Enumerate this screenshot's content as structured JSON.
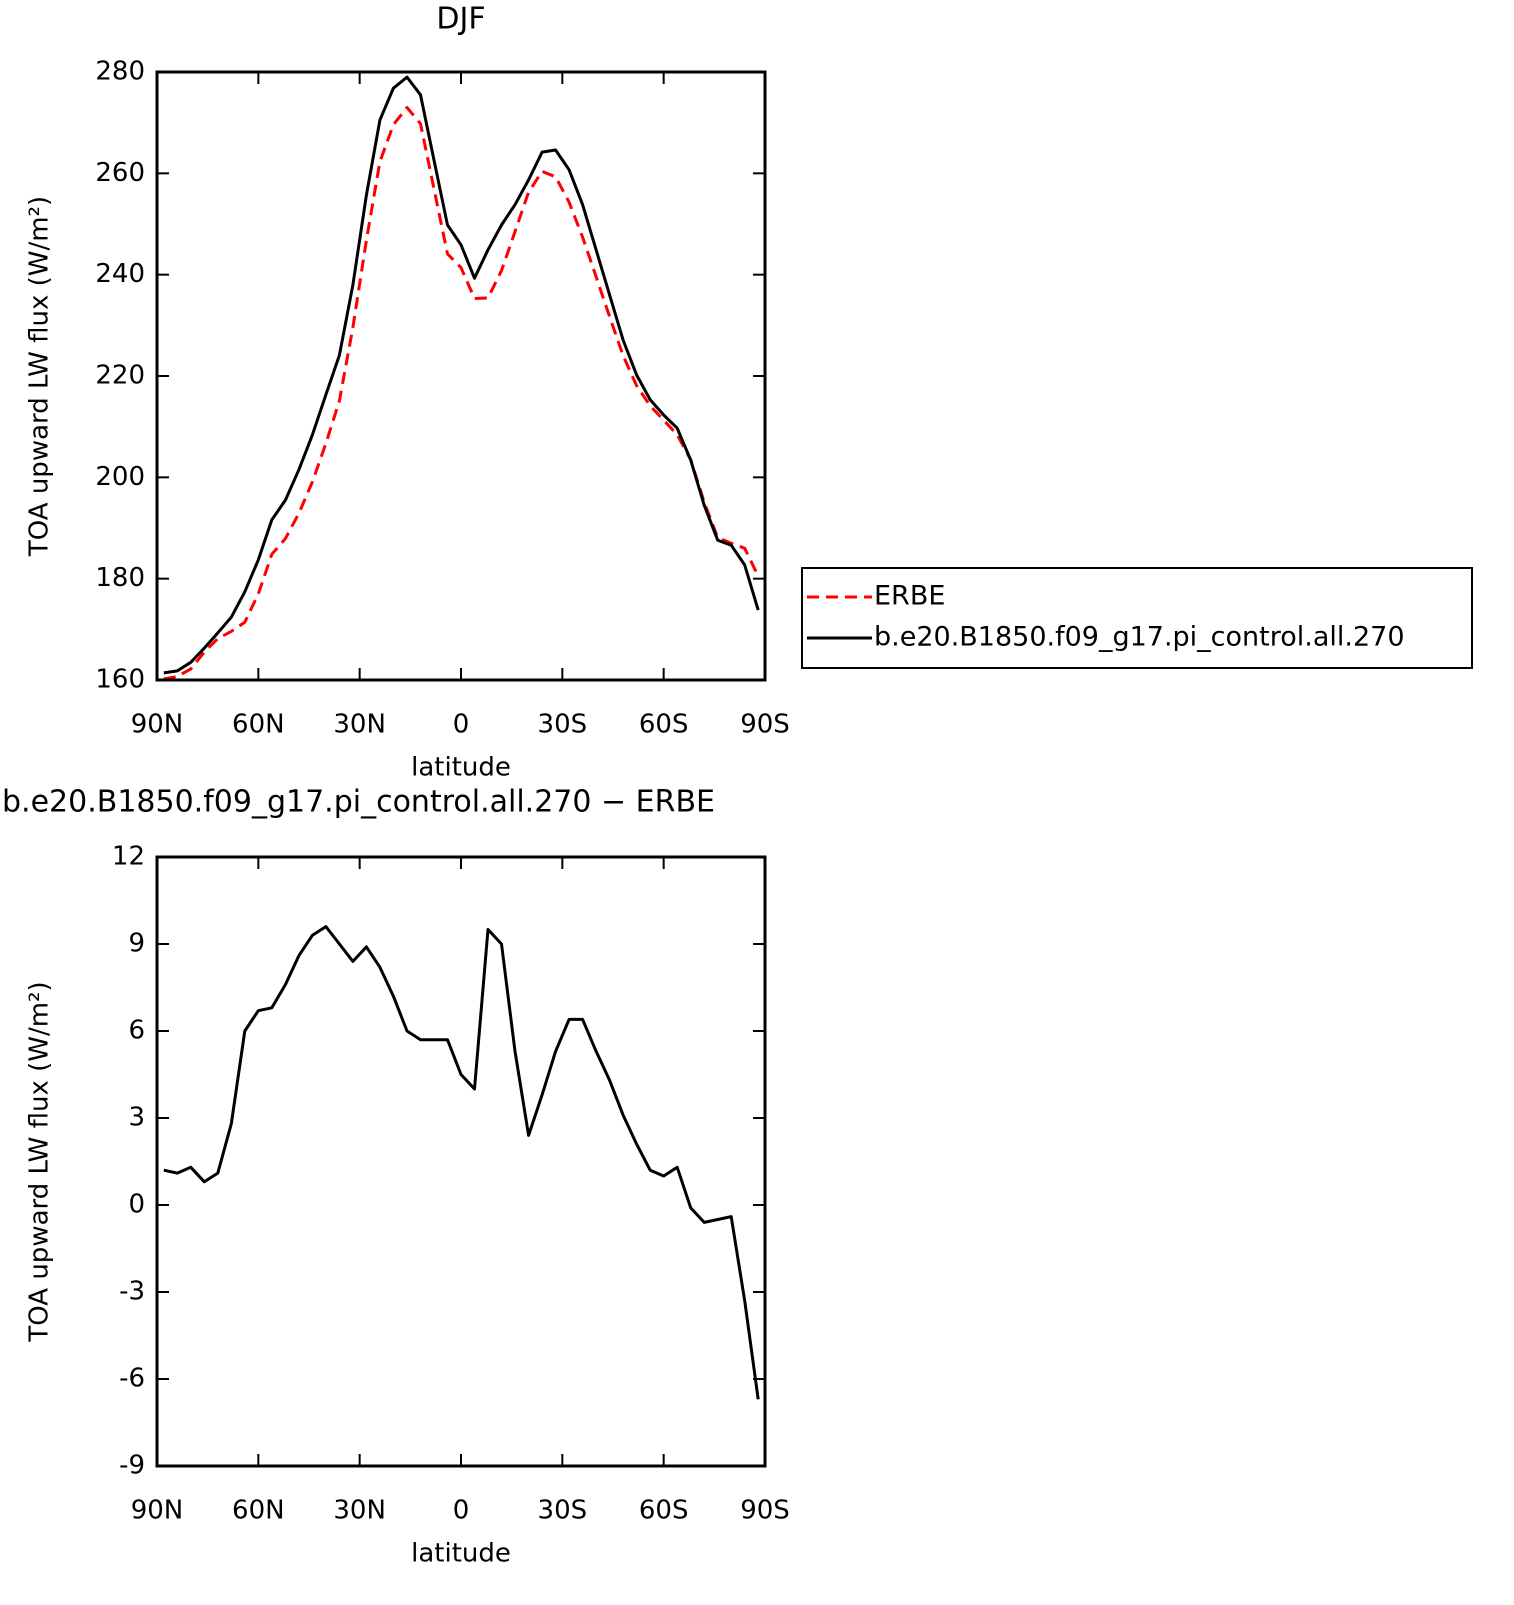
{
  "chart_data": [
    {
      "type": "line",
      "title": "DJF",
      "xlabel": "latitude",
      "ylabel": "TOA upward LW flux (W/m²)",
      "x": [
        88,
        84,
        80,
        76,
        72,
        68,
        64,
        60,
        56,
        52,
        48,
        44,
        40,
        36,
        32,
        28,
        24,
        20,
        16,
        12,
        8,
        4,
        0,
        -4,
        -8,
        -12,
        -16,
        -20,
        -24,
        -28,
        -32,
        -36,
        -40,
        -44,
        -48,
        -52,
        -56,
        -60,
        -64,
        -68,
        -72,
        -76,
        -80,
        -84,
        -88
      ],
      "xlim": [
        90,
        -90
      ],
      "xticks": [
        {
          "value": 90,
          "label": "90N"
        },
        {
          "value": 60,
          "label": "60N"
        },
        {
          "value": 30,
          "label": "30N"
        },
        0,
        {
          "value": -30,
          "label": "30S"
        },
        {
          "value": -60,
          "label": "60S"
        },
        {
          "value": -90,
          "label": "90S"
        }
      ],
      "ylim": [
        160,
        280
      ],
      "yticks": [
        160,
        180,
        200,
        220,
        240,
        260,
        280
      ],
      "legend": "right",
      "series": [
        {
          "name": "ERBE",
          "color": "#ff0000",
          "dashed": true,
          "values": [
            160.2,
            160.7,
            162.2,
            165.5,
            168.2,
            169.6,
            171.4,
            177.0,
            184.8,
            187.9,
            192.9,
            199.1,
            206.7,
            215.1,
            229.6,
            246.8,
            262.3,
            269.6,
            273.0,
            269.8,
            256.9,
            244.1,
            241.4,
            235.3,
            235.4,
            240.8,
            248.5,
            256.3,
            260.4,
            259.3,
            254.3,
            247.4,
            239.6,
            231.7,
            224.0,
            218.1,
            214.1,
            211.3,
            208.4,
            203.5,
            195.1,
            188.1,
            187.0,
            186.0,
            180.5
          ]
        },
        {
          "name": "b.e20.B1850.f09_g17.pi_control.all.270",
          "color": "#000000",
          "dashed": false,
          "values": [
            161.4,
            161.8,
            163.5,
            166.3,
            169.3,
            172.4,
            177.4,
            183.7,
            191.6,
            195.5,
            201.5,
            208.4,
            216.3,
            224.1,
            238.0,
            255.7,
            270.5,
            276.8,
            279.0,
            275.5,
            262.6,
            249.8,
            245.9,
            239.3,
            244.9,
            249.8,
            253.8,
            258.7,
            264.2,
            264.6,
            260.7,
            253.8,
            244.9,
            236.0,
            227.1,
            220.2,
            215.3,
            212.3,
            209.7,
            203.4,
            194.5,
            187.6,
            186.6,
            182.7,
            173.8
          ]
        }
      ]
    },
    {
      "type": "line",
      "title": "b.e20.B1850.f09_g17.pi_control.all.270 − ERBE",
      "xlabel": "latitude",
      "ylabel": "TOA upward LW flux (W/m²)",
      "x": [
        88,
        84,
        80,
        76,
        72,
        68,
        64,
        60,
        56,
        52,
        48,
        44,
        40,
        36,
        32,
        28,
        24,
        20,
        16,
        12,
        8,
        4,
        0,
        -4,
        -8,
        -12,
        -16,
        -20,
        -24,
        -28,
        -32,
        -36,
        -40,
        -44,
        -48,
        -52,
        -56,
        -60,
        -64,
        -68,
        -72,
        -76,
        -80,
        -84,
        -88
      ],
      "xlim": [
        90,
        -90
      ],
      "xticks": [
        {
          "value": 90,
          "label": "90N"
        },
        {
          "value": 60,
          "label": "60N"
        },
        {
          "value": 30,
          "label": "30N"
        },
        0,
        {
          "value": -30,
          "label": "30S"
        },
        {
          "value": -60,
          "label": "60S"
        },
        {
          "value": -90,
          "label": "90S"
        }
      ],
      "ylim": [
        -9,
        12
      ],
      "yticks": [
        -9,
        -6,
        -3,
        0,
        3,
        6,
        9,
        12
      ],
      "series": [
        {
          "color": "#000000",
          "dashed": false,
          "values": [
            1.2,
            1.1,
            1.3,
            0.8,
            1.1,
            2.8,
            6.0,
            6.7,
            6.8,
            7.6,
            8.6,
            9.3,
            9.6,
            9.0,
            8.4,
            8.9,
            8.2,
            7.2,
            6.0,
            5.7,
            5.7,
            5.7,
            4.5,
            4.0,
            9.5,
            9.0,
            5.3,
            2.4,
            3.8,
            5.3,
            6.4,
            6.4,
            5.3,
            4.3,
            3.1,
            2.1,
            1.2,
            1.0,
            1.3,
            -0.1,
            -0.6,
            -0.5,
            -0.4,
            -3.3,
            -6.7
          ]
        }
      ]
    }
  ]
}
